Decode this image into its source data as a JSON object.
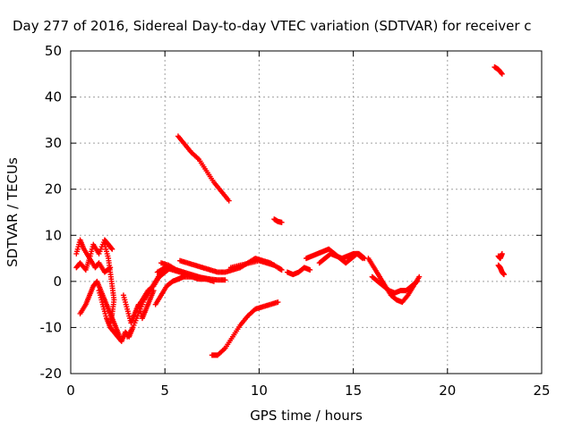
{
  "chart_data": {
    "type": "scatter",
    "title": "Day 277 of 2016, Sidereal Day-to-day VTEC variation (SDTVAR) for receiver c",
    "xlabel": "GPS time / hours",
    "ylabel": "SDTVAR / TECUs",
    "xlim": [
      0,
      25
    ],
    "ylim": [
      -20,
      50
    ],
    "xticks": [
      "0",
      "5",
      "10",
      "15",
      "20",
      "25"
    ],
    "yticks": [
      "-20",
      "-10",
      "0",
      "10",
      "20",
      "30",
      "40",
      "50"
    ],
    "grid": true,
    "marker": "+",
    "color": "#ff0000",
    "segments": [
      {
        "x": [
          5.7,
          6.0,
          6.4,
          6.8,
          7.2,
          7.6,
          8.0,
          8.4
        ],
        "y": [
          31.5,
          30,
          28,
          26.5,
          24,
          21.5,
          19.5,
          17.5
        ]
      },
      {
        "x": [
          10.8,
          11.0,
          11.2
        ],
        "y": [
          13.5,
          13,
          12.8
        ]
      },
      {
        "x": [
          22.5,
          22.7,
          22.9
        ],
        "y": [
          46.5,
          46,
          45
        ]
      },
      {
        "x": [
          22.7,
          22.8,
          22.9
        ],
        "y": [
          5.5,
          5,
          6
        ]
      },
      {
        "x": [
          22.7,
          22.8,
          22.9,
          23.0
        ],
        "y": [
          3.5,
          3,
          2,
          1.5
        ]
      },
      {
        "x": [
          7.5,
          7.8,
          8.2,
          8.6,
          9.0,
          9.4,
          9.8,
          10.2,
          10.6,
          11.0
        ],
        "y": [
          -16,
          -16,
          -14.5,
          -12,
          -9.5,
          -7.5,
          -6,
          -5.5,
          -5,
          -4.5
        ]
      },
      {
        "x": [
          0.3,
          0.5,
          0.7,
          1.0,
          1.2,
          1.5,
          1.8,
          2.0,
          2.2
        ],
        "y": [
          6,
          9,
          7,
          5,
          8,
          6,
          9,
          8,
          7
        ]
      },
      {
        "x": [
          0.3,
          0.5,
          0.8,
          1.0,
          1.3,
          1.5,
          1.8,
          2.1
        ],
        "y": [
          3,
          4,
          2.5,
          5,
          3,
          4,
          2,
          3
        ]
      },
      {
        "x": [
          1.8,
          2.0,
          2.1,
          2.2,
          2.3,
          2.2,
          2.1
        ],
        "y": [
          8,
          5,
          2,
          -1,
          -4,
          -7,
          -9
        ]
      },
      {
        "x": [
          0.5,
          0.8,
          1.0,
          1.2,
          1.4,
          1.6,
          1.8,
          2.0,
          2.2,
          2.4,
          2.6
        ],
        "y": [
          -7,
          -5,
          -3,
          -1,
          0,
          -2,
          -4,
          -6,
          -8,
          -10,
          -12
        ]
      },
      {
        "x": [
          1.5,
          1.7,
          1.9,
          2.1,
          2.3,
          2.5,
          2.7,
          2.9,
          3.1,
          3.3
        ],
        "y": [
          -2,
          -5,
          -8,
          -10,
          -11,
          -12,
          -13,
          -11,
          -12,
          -10
        ]
      },
      {
        "x": [
          2.8,
          3.0,
          3.2,
          3.4,
          3.6,
          3.8,
          4.0,
          4.2,
          4.4
        ],
        "y": [
          -3,
          -6,
          -9,
          -7,
          -5,
          -8,
          -6,
          -4,
          -2
        ]
      },
      {
        "x": [
          3.0,
          3.3,
          3.6,
          3.9,
          4.2,
          4.5,
          4.8,
          5.1
        ],
        "y": [
          -12,
          -10,
          -7,
          -4,
          -2,
          0,
          2,
          3
        ]
      },
      {
        "x": [
          3.5,
          3.8,
          4.1,
          4.4,
          4.7,
          5.0,
          5.3,
          5.6,
          5.9
        ],
        "y": [
          -6,
          -4,
          -2,
          -1,
          1,
          2,
          3,
          2.5,
          2
        ]
      },
      {
        "x": [
          4.5,
          4.8,
          5.1,
          5.4,
          5.7,
          6.0,
          6.4,
          6.8,
          7.2,
          7.6
        ],
        "y": [
          -5,
          -3,
          -1,
          0,
          0.5,
          1,
          1,
          0.5,
          0.5,
          0
        ]
      },
      {
        "x": [
          4.6,
          5.0,
          5.4,
          5.8,
          6.2,
          6.6,
          7.0,
          7.4,
          7.8,
          8.2
        ],
        "y": [
          2,
          3,
          2.5,
          2,
          1.5,
          1,
          0.8,
          0.5,
          0.3,
          0.3
        ]
      },
      {
        "x": [
          4.8,
          5.2,
          5.6,
          6.0,
          6.4,
          6.8,
          7.2
        ],
        "y": [
          4,
          3.5,
          2.5,
          2,
          1.5,
          1,
          0.5
        ]
      },
      {
        "x": [
          5.8,
          6.2,
          6.6,
          7.0,
          7.4,
          7.8,
          8.2,
          8.6,
          9.0,
          9.4,
          9.8,
          10.2,
          10.6,
          11.0,
          11.2
        ],
        "y": [
          4.5,
          4,
          3.5,
          3,
          2.5,
          2,
          2,
          2.5,
          3,
          4,
          5,
          4.5,
          4,
          3,
          2.5
        ]
      },
      {
        "x": [
          8.5,
          9.0,
          9.5,
          10.0,
          10.4,
          10.8
        ],
        "y": [
          3,
          3.5,
          4,
          4.5,
          4,
          3.5
        ]
      },
      {
        "x": [
          11.5,
          11.8,
          12.1,
          12.4,
          12.7
        ],
        "y": [
          2,
          1.5,
          2,
          3,
          2.5
        ]
      },
      {
        "x": [
          12.5,
          12.8,
          13.1,
          13.4,
          13.7,
          14.0,
          14.3,
          14.6,
          14.9,
          15.2,
          15.5
        ],
        "y": [
          5,
          5.5,
          6,
          6.5,
          7,
          6,
          5,
          4,
          5,
          6,
          5
        ]
      },
      {
        "x": [
          13.2,
          13.5,
          13.8,
          14.1,
          14.4,
          14.7,
          15.0,
          15.3,
          15.6
        ],
        "y": [
          4,
          5,
          6,
          5.5,
          5,
          5.5,
          6,
          6,
          5
        ]
      },
      {
        "x": [
          15.8,
          16.1,
          16.4,
          16.7,
          17.0,
          17.3,
          17.6,
          17.9,
          18.2,
          18.5
        ],
        "y": [
          5,
          3,
          1,
          -1,
          -3,
          -4,
          -4.5,
          -3,
          -1,
          1
        ]
      },
      {
        "x": [
          16.0,
          16.3,
          16.6,
          16.9,
          17.2,
          17.5,
          17.8,
          18.1,
          18.4
        ],
        "y": [
          1,
          0,
          -1,
          -2,
          -2.5,
          -2,
          -2,
          -1,
          0
        ]
      }
    ]
  }
}
